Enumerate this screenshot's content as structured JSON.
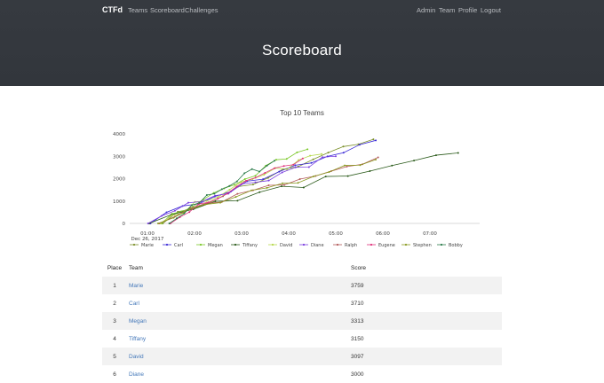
{
  "nav": {
    "brand": "CTFd",
    "left": [
      "Teams",
      "Scoreboard",
      "Challenges"
    ],
    "right": [
      "Admin",
      "Team",
      "Profile",
      "Logout"
    ]
  },
  "page": {
    "title": "Scoreboard"
  },
  "chart_data": {
    "type": "line",
    "title": "Top 10 Teams",
    "xlabel": "",
    "ylabel": "",
    "x_ticks": [
      "01:00\nDec 26, 2017",
      "02:00",
      "03:00",
      "04:00",
      "05:00",
      "06:00",
      "07:00"
    ],
    "y_ticks": [
      0,
      1000,
      2000,
      3000,
      4000
    ],
    "ylim": [
      0,
      4000
    ],
    "grid": false,
    "legend_position": "bottom",
    "series": [
      {
        "name": "Marie",
        "color": "#7a8f2a",
        "final": 3759
      },
      {
        "name": "Carl",
        "color": "#3b2bd6",
        "final": 3710
      },
      {
        "name": "Megan",
        "color": "#7cc82a",
        "final": 3313
      },
      {
        "name": "Tiffany",
        "color": "#2a5a1a",
        "final": 3150
      },
      {
        "name": "David",
        "color": "#b6d94a",
        "final": 3097
      },
      {
        "name": "Diane",
        "color": "#7a3ee0",
        "final": 3000
      },
      {
        "name": "Ralph",
        "color": "#b35a5a",
        "final": 2950
      },
      {
        "name": "Eugene",
        "color": "#e0307a",
        "final": 2900
      },
      {
        "name": "Stephen",
        "color": "#8a9a20",
        "final": 2850
      },
      {
        "name": "Bobby",
        "color": "#2a7a4a",
        "final": 2800
      }
    ]
  },
  "table": {
    "headers": {
      "place": "Place",
      "team": "Team",
      "score": "Score"
    },
    "rows": [
      {
        "place": "1",
        "team": "Marie",
        "score": "3759"
      },
      {
        "place": "2",
        "team": "Carl",
        "score": "3710"
      },
      {
        "place": "3",
        "team": "Megan",
        "score": "3313"
      },
      {
        "place": "4",
        "team": "Tiffany",
        "score": "3150"
      },
      {
        "place": "5",
        "team": "David",
        "score": "3097"
      },
      {
        "place": "6",
        "team": "Diane",
        "score": "3000"
      }
    ]
  }
}
